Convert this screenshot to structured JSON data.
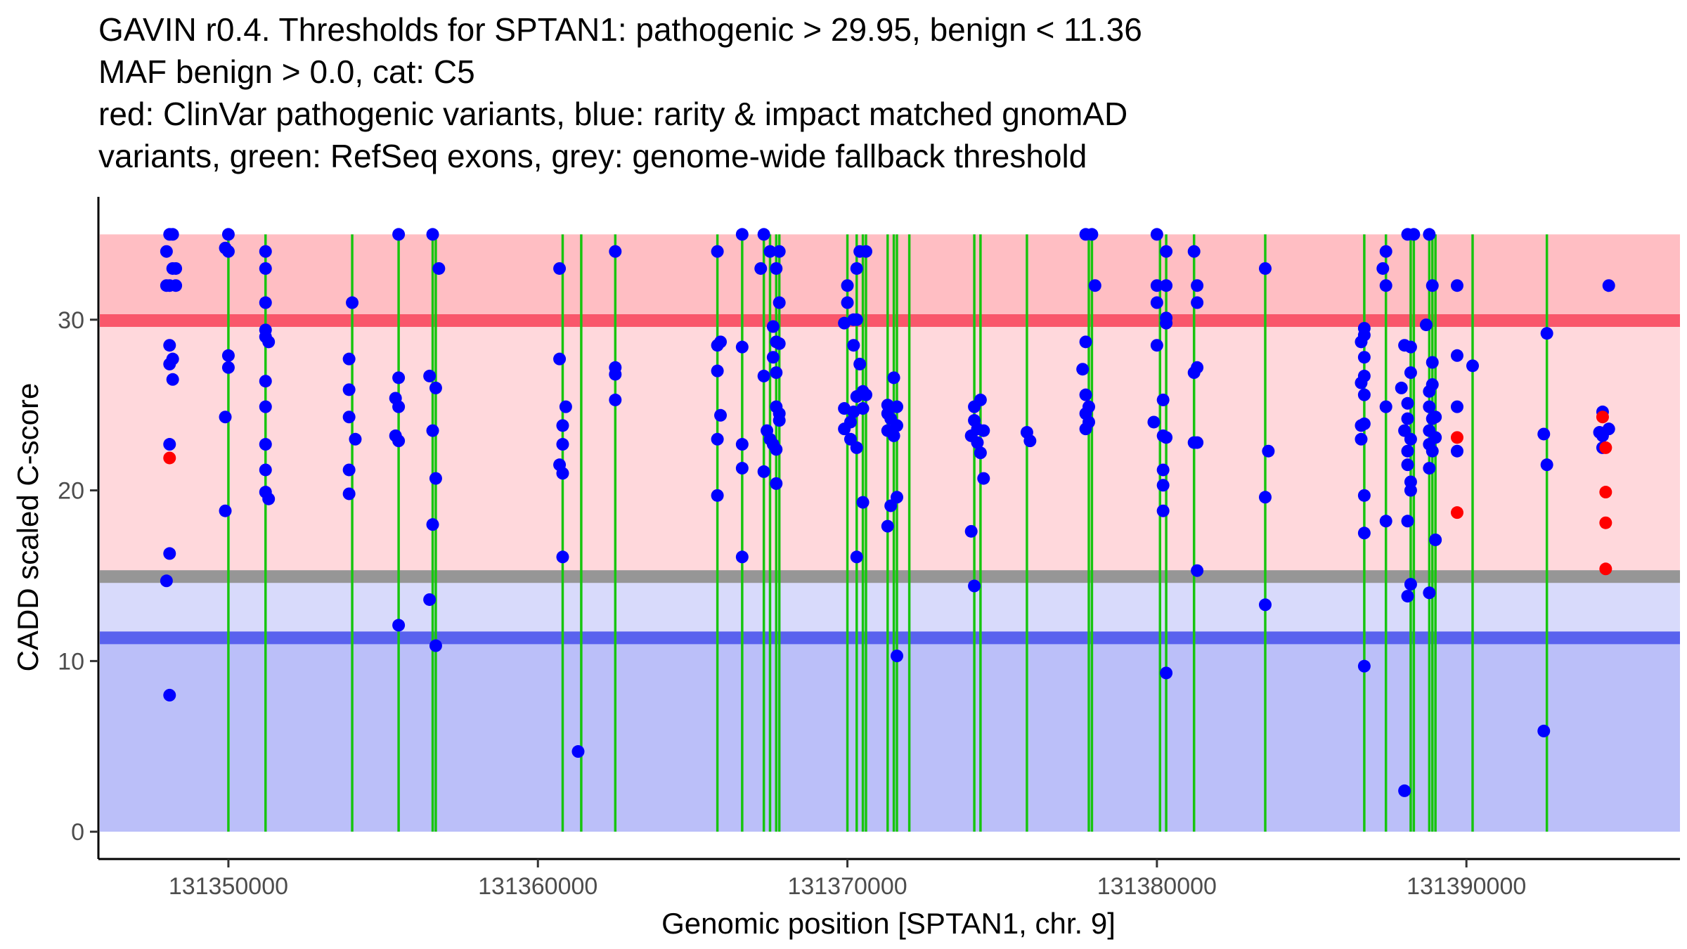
{
  "title_lines": [
    "GAVIN r0.4. Thresholds for SPTAN1: pathogenic > 29.95, benign < 11.36",
    "MAF benign > 0.0, cat: C5",
    "red: ClinVar pathogenic variants, blue: rarity & impact matched gnomAD",
    "variants, green: RefSeq exons, grey: genome-wide fallback threshold"
  ],
  "chart_data": {
    "type": "scatter",
    "xlabel": "Genomic position [SPTAN1, chr. 9]",
    "ylabel": "CADD scaled C-score",
    "xlim": [
      131345800,
      131396900
    ],
    "ylim": [
      -1.6,
      37.2
    ],
    "xticks": [
      131350000,
      131360000,
      131370000,
      131380000,
      131390000
    ],
    "yticks": [
      0,
      10,
      20,
      30
    ],
    "grid": false,
    "colors": {
      "pathogenic_band": "#ffbec3",
      "middle_band": "#ffd8dc",
      "benign_upper_band": "#d8dafb",
      "benign_band": "#bbbff9",
      "pathogenic_threshold_line": "#f9576b",
      "fallback_line": "#969696",
      "benign_threshold_line": "#5962ee",
      "exon": "#17c50f",
      "gnomad_point": "#0000ff",
      "clinvar_point": "#ff0000"
    },
    "bands": [
      {
        "name": "pathogenic-zone",
        "from": 29.95,
        "to": 35
      },
      {
        "name": "intermediate-upper-zone",
        "from": 15.3,
        "to": 29.95
      },
      {
        "name": "intermediate-lower-zone",
        "from": 11.36,
        "to": 14.6
      },
      {
        "name": "benign-zone",
        "from": 0,
        "to": 11.36
      }
    ],
    "thresholds": [
      {
        "name": "pathogenic-threshold",
        "value": 29.95
      },
      {
        "name": "fallback-threshold",
        "value": 14.95
      },
      {
        "name": "benign-threshold",
        "value": 11.36
      }
    ],
    "exon_positions": [
      131350000,
      131351200,
      131354000,
      131355500,
      131356600,
      131356700,
      131360800,
      131361400,
      131362500,
      131365800,
      131366600,
      131367300,
      131367500,
      131367700,
      131367800,
      131370000,
      131370300,
      131370500,
      131370600,
      131371300,
      131371500,
      131371600,
      131372000,
      131374100,
      131374300,
      131375800,
      131377800,
      131377900,
      131380100,
      131380300,
      131381200,
      131383500,
      131386700,
      131387400,
      131388200,
      131388300,
      131388800,
      131388900,
      131389000,
      131390200,
      131392600
    ],
    "gnomad_points": [
      [
        131348100,
        35
      ],
      [
        131348200,
        35
      ],
      [
        131348000,
        34
      ],
      [
        131348200,
        33
      ],
      [
        131348300,
        33
      ],
      [
        131348000,
        32
      ],
      [
        131348100,
        32
      ],
      [
        131348300,
        32
      ],
      [
        131348100,
        28.5
      ],
      [
        131348200,
        27.7
      ],
      [
        131348100,
        27.4
      ],
      [
        131348200,
        26.5
      ],
      [
        131348100,
        22.7
      ],
      [
        131348100,
        16.3
      ],
      [
        131348000,
        14.7
      ],
      [
        131348100,
        8
      ],
      [
        131350000,
        35
      ],
      [
        131349900,
        34.2
      ],
      [
        131350000,
        34
      ],
      [
        131350000,
        27.9
      ],
      [
        131350000,
        27.2
      ],
      [
        131349900,
        24.3
      ],
      [
        131349900,
        18.8
      ],
      [
        131351200,
        34
      ],
      [
        131351200,
        33
      ],
      [
        131351200,
        31
      ],
      [
        131351200,
        29.4
      ],
      [
        131351200,
        29
      ],
      [
        131351300,
        28.7
      ],
      [
        131351200,
        26.4
      ],
      [
        131351200,
        24.9
      ],
      [
        131351200,
        22.7
      ],
      [
        131351200,
        21.2
      ],
      [
        131351200,
        19.9
      ],
      [
        131351300,
        19.5
      ],
      [
        131354000,
        31
      ],
      [
        131353900,
        27.7
      ],
      [
        131353900,
        25.9
      ],
      [
        131353900,
        24.3
      ],
      [
        131354100,
        23
      ],
      [
        131353900,
        21.2
      ],
      [
        131353900,
        19.8
      ],
      [
        131355500,
        35
      ],
      [
        131355500,
        26.6
      ],
      [
        131355400,
        25.4
      ],
      [
        131355500,
        24.9
      ],
      [
        131355400,
        23.2
      ],
      [
        131355500,
        22.9
      ],
      [
        131355500,
        12.1
      ],
      [
        131356600,
        35
      ],
      [
        131356800,
        33
      ],
      [
        131356500,
        26.7
      ],
      [
        131356700,
        26
      ],
      [
        131356600,
        23.5
      ],
      [
        131356700,
        20.7
      ],
      [
        131356600,
        18
      ],
      [
        131356500,
        13.6
      ],
      [
        131356700,
        10.9
      ],
      [
        131360700,
        33
      ],
      [
        131360700,
        27.7
      ],
      [
        131360900,
        24.9
      ],
      [
        131360800,
        23.8
      ],
      [
        131360800,
        22.7
      ],
      [
        131360700,
        21.5
      ],
      [
        131360800,
        21
      ],
      [
        131360800,
        16.1
      ],
      [
        131361300,
        4.7
      ],
      [
        131362500,
        34
      ],
      [
        131362500,
        27.2
      ],
      [
        131362500,
        26.8
      ],
      [
        131362500,
        25.3
      ],
      [
        131365800,
        34
      ],
      [
        131365900,
        28.7
      ],
      [
        131365800,
        28.5
      ],
      [
        131365800,
        27
      ],
      [
        131365900,
        24.4
      ],
      [
        131365800,
        23
      ],
      [
        131365800,
        19.7
      ],
      [
        131366600,
        35
      ],
      [
        131366600,
        28.4
      ],
      [
        131366600,
        22.7
      ],
      [
        131366600,
        21.3
      ],
      [
        131366600,
        16.1
      ],
      [
        131367300,
        35
      ],
      [
        131367200,
        33
      ],
      [
        131367500,
        34
      ],
      [
        131367800,
        34
      ],
      [
        131367700,
        33
      ],
      [
        131367800,
        31
      ],
      [
        131367600,
        29.6
      ],
      [
        131367700,
        28.7
      ],
      [
        131367800,
        28.6
      ],
      [
        131367600,
        27.8
      ],
      [
        131367700,
        26.9
      ],
      [
        131367300,
        26.7
      ],
      [
        131367700,
        24.9
      ],
      [
        131367800,
        24.5
      ],
      [
        131367800,
        24.1
      ],
      [
        131367400,
        23.5
      ],
      [
        131367500,
        23
      ],
      [
        131367600,
        22.7
      ],
      [
        131367700,
        22.4
      ],
      [
        131367300,
        21.1
      ],
      [
        131367700,
        20.4
      ],
      [
        131370000,
        32
      ],
      [
        131370000,
        31
      ],
      [
        131369900,
        29.8
      ],
      [
        131370200,
        30
      ],
      [
        131370300,
        30
      ],
      [
        131370300,
        33
      ],
      [
        131370400,
        34
      ],
      [
        131370600,
        34
      ],
      [
        131370200,
        28.5
      ],
      [
        131370400,
        27.4
      ],
      [
        131370500,
        25.8
      ],
      [
        131370300,
        25.5
      ],
      [
        131370600,
        25.6
      ],
      [
        131369900,
        24.8
      ],
      [
        131370200,
        24.6
      ],
      [
        131370500,
        24.8
      ],
      [
        131370100,
        24
      ],
      [
        131369900,
        23.6
      ],
      [
        131370100,
        23
      ],
      [
        131370300,
        22.5
      ],
      [
        131370500,
        19.3
      ],
      [
        131370300,
        16.1
      ],
      [
        131371300,
        25
      ],
      [
        131371500,
        26.6
      ],
      [
        131371300,
        24.5
      ],
      [
        131371600,
        24.9
      ],
      [
        131371400,
        24.2
      ],
      [
        131371600,
        23.8
      ],
      [
        131371300,
        23.5
      ],
      [
        131371500,
        23.2
      ],
      [
        131371400,
        19.1
      ],
      [
        131371600,
        19.6
      ],
      [
        131371300,
        17.9
      ],
      [
        131371600,
        10.3
      ],
      [
        131374100,
        24.9
      ],
      [
        131374300,
        25.3
      ],
      [
        131374100,
        24.1
      ],
      [
        131374200,
        23.6
      ],
      [
        131374400,
        23.5
      ],
      [
        131374000,
        23.2
      ],
      [
        131374200,
        22.8
      ],
      [
        131374300,
        22.2
      ],
      [
        131374400,
        20.7
      ],
      [
        131374000,
        17.6
      ],
      [
        131374100,
        14.4
      ],
      [
        131375800,
        23.4
      ],
      [
        131375900,
        22.9
      ],
      [
        131377700,
        35
      ],
      [
        131377900,
        35
      ],
      [
        131378000,
        32
      ],
      [
        131377700,
        28.7
      ],
      [
        131377600,
        27.1
      ],
      [
        131377700,
        25.6
      ],
      [
        131377800,
        24.9
      ],
      [
        131377700,
        24.5
      ],
      [
        131377800,
        24
      ],
      [
        131377700,
        23.6
      ],
      [
        131380000,
        35
      ],
      [
        131380000,
        32
      ],
      [
        131380300,
        34
      ],
      [
        131380000,
        31
      ],
      [
        131380300,
        32
      ],
      [
        131380300,
        30.1
      ],
      [
        131380300,
        29.8
      ],
      [
        131380000,
        28.5
      ],
      [
        131380200,
        25.3
      ],
      [
        131379900,
        24
      ],
      [
        131380200,
        23.2
      ],
      [
        131380300,
        23.1
      ],
      [
        131380200,
        21.2
      ],
      [
        131380200,
        20.3
      ],
      [
        131380200,
        18.8
      ],
      [
        131380300,
        9.3
      ],
      [
        131381200,
        34
      ],
      [
        131381300,
        32
      ],
      [
        131381300,
        31
      ],
      [
        131381300,
        27.2
      ],
      [
        131381200,
        26.9
      ],
      [
        131381200,
        22.8
      ],
      [
        131381300,
        22.8
      ],
      [
        131381300,
        15.3
      ],
      [
        131383500,
        33
      ],
      [
        131383600,
        22.3
      ],
      [
        131383500,
        19.6
      ],
      [
        131383500,
        13.3
      ],
      [
        131386700,
        29.5
      ],
      [
        131386700,
        29.1
      ],
      [
        131386600,
        28.7
      ],
      [
        131386700,
        27.8
      ],
      [
        131386700,
        26.7
      ],
      [
        131386600,
        26.3
      ],
      [
        131386700,
        25.6
      ],
      [
        131386700,
        23.9
      ],
      [
        131386600,
        23.8
      ],
      [
        131386600,
        23
      ],
      [
        131386700,
        19.7
      ],
      [
        131386700,
        17.5
      ],
      [
        131386700,
        9.7
      ],
      [
        131387400,
        34
      ],
      [
        131387300,
        33
      ],
      [
        131387400,
        32
      ],
      [
        131387400,
        24.9
      ],
      [
        131387400,
        18.2
      ],
      [
        131388100,
        35
      ],
      [
        131388300,
        35
      ],
      [
        131388000,
        28.5
      ],
      [
        131388200,
        28.4
      ],
      [
        131388200,
        26.9
      ],
      [
        131387900,
        26
      ],
      [
        131388100,
        25.1
      ],
      [
        131388100,
        24.2
      ],
      [
        131388000,
        23.5
      ],
      [
        131388200,
        23
      ],
      [
        131388100,
        22.3
      ],
      [
        131388100,
        21.5
      ],
      [
        131388200,
        20.5
      ],
      [
        131388200,
        20
      ],
      [
        131388100,
        18.2
      ],
      [
        131388200,
        14.5
      ],
      [
        131388100,
        13.8
      ],
      [
        131388000,
        2.4
      ],
      [
        131388800,
        35
      ],
      [
        131388900,
        32
      ],
      [
        131388700,
        29.7
      ],
      [
        131388900,
        27.5
      ],
      [
        131388900,
        26.2
      ],
      [
        131388800,
        25.8
      ],
      [
        131388800,
        24.9
      ],
      [
        131389000,
        24.3
      ],
      [
        131388900,
        24.2
      ],
      [
        131388800,
        23.5
      ],
      [
        131389000,
        23.1
      ],
      [
        131388800,
        22.7
      ],
      [
        131388900,
        22.3
      ],
      [
        131388800,
        21.3
      ],
      [
        131389000,
        17.1
      ],
      [
        131388800,
        14
      ],
      [
        131389700,
        32
      ],
      [
        131389700,
        27.9
      ],
      [
        131389700,
        24.9
      ],
      [
        131389700,
        22.3
      ],
      [
        131390200,
        27.3
      ],
      [
        131392600,
        29.2
      ],
      [
        131392500,
        23.3
      ],
      [
        131392600,
        21.5
      ],
      [
        131392500,
        5.9
      ],
      [
        131394600,
        32
      ],
      [
        131394400,
        24.6
      ],
      [
        131394600,
        23.6
      ],
      [
        131394400,
        23.2
      ],
      [
        131394300,
        23.4
      ],
      [
        131394400,
        22.5
      ]
    ],
    "clinvar_points": [
      [
        131348100,
        21.9
      ],
      [
        131389700,
        23.1
      ],
      [
        131389700,
        18.7
      ],
      [
        131394400,
        24.3
      ],
      [
        131394500,
        22.5
      ],
      [
        131394500,
        19.9
      ],
      [
        131394500,
        18.1
      ],
      [
        131394500,
        15.4
      ]
    ]
  }
}
